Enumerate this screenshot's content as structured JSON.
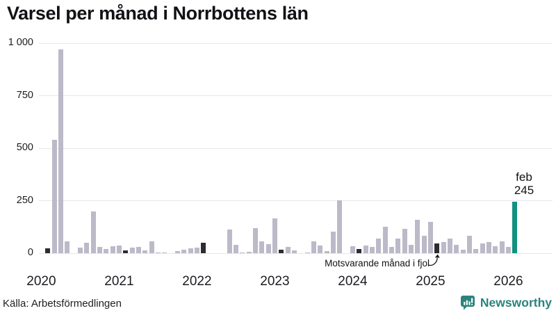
{
  "title": "Varsel per månad i Norrbottens län",
  "source": "Källa: Arbetsförmedlingen",
  "annotation": {
    "text": "Motsvarande månad i fjol"
  },
  "highlight_label": {
    "line1": "feb",
    "line2": "245"
  },
  "brand": {
    "name": "Newsworthy",
    "color": "#2b837c"
  },
  "colors": {
    "bar_default": "#bcb9c8",
    "bar_compare": "#2e2c33",
    "bar_highlight": "#119180",
    "grid": "#e7e6ec",
    "text": "#111215"
  },
  "chart_data": {
    "type": "bar",
    "title": "Varsel per månad i Norrbottens län",
    "xlabel": "",
    "ylabel": "",
    "ylim": [
      0,
      1000
    ],
    "grid": true,
    "y_ticks": [
      0,
      250,
      500,
      750,
      1000
    ],
    "y_tick_labels": [
      "0",
      "250",
      "500",
      "750",
      "1 000"
    ],
    "x": [
      "2020-01",
      "2020-02",
      "2020-03",
      "2020-04",
      "2020-05",
      "2020-06",
      "2020-07",
      "2020-08",
      "2020-09",
      "2020-10",
      "2020-11",
      "2020-12",
      "2021-01",
      "2021-02",
      "2021-03",
      "2021-04",
      "2021-05",
      "2021-06",
      "2021-07",
      "2021-08",
      "2021-09",
      "2021-10",
      "2021-11",
      "2021-12",
      "2022-01",
      "2022-02",
      "2022-03",
      "2022-04",
      "2022-05",
      "2022-06",
      "2022-07",
      "2022-08",
      "2022-09",
      "2022-10",
      "2022-11",
      "2022-12",
      "2023-01",
      "2023-02",
      "2023-03",
      "2023-04",
      "2023-05",
      "2023-06",
      "2023-07",
      "2023-08",
      "2023-09",
      "2023-10",
      "2023-11",
      "2023-12",
      "2024-01",
      "2024-02",
      "2024-03",
      "2024-04",
      "2024-05",
      "2024-06",
      "2024-07",
      "2024-08",
      "2024-09",
      "2024-10",
      "2024-11",
      "2024-12",
      "2025-01",
      "2025-02",
      "2025-03",
      "2025-04",
      "2025-05",
      "2025-06",
      "2025-07",
      "2025-08",
      "2025-09",
      "2025-10",
      "2025-11",
      "2025-12",
      "2026-01",
      "2026-02"
    ],
    "values": [
      0,
      24,
      540,
      970,
      55,
      0,
      25,
      50,
      200,
      31,
      20,
      33,
      36,
      12,
      27,
      31,
      14,
      56,
      3,
      4,
      0,
      10,
      16,
      22,
      26,
      50,
      0,
      0,
      0,
      112,
      41,
      4,
      8,
      120,
      55,
      42,
      165,
      18,
      30,
      12,
      0,
      3,
      55,
      36,
      9,
      103,
      251,
      0,
      32,
      19,
      35,
      29,
      68,
      126,
      29,
      70,
      115,
      41,
      160,
      82,
      150,
      45,
      54,
      71,
      40,
      15,
      82,
      20,
      46,
      52,
      32,
      56,
      30,
      245
    ],
    "series_name": "Varsel per månad",
    "compare_indices": [
      1,
      13,
      25,
      37,
      49,
      61
    ],
    "compare_label": "Motsvarande månad i fjol",
    "highlight_index": 73,
    "highlight_value_label": "feb 245",
    "x_year_ticks": [
      {
        "label": "2020",
        "month_index": 0
      },
      {
        "label": "2021",
        "month_index": 12
      },
      {
        "label": "2022",
        "month_index": 24
      },
      {
        "label": "2023",
        "month_index": 36
      },
      {
        "label": "2024",
        "month_index": 48
      },
      {
        "label": "2025",
        "month_index": 60
      },
      {
        "label": "2026",
        "month_index": 72
      }
    ]
  }
}
